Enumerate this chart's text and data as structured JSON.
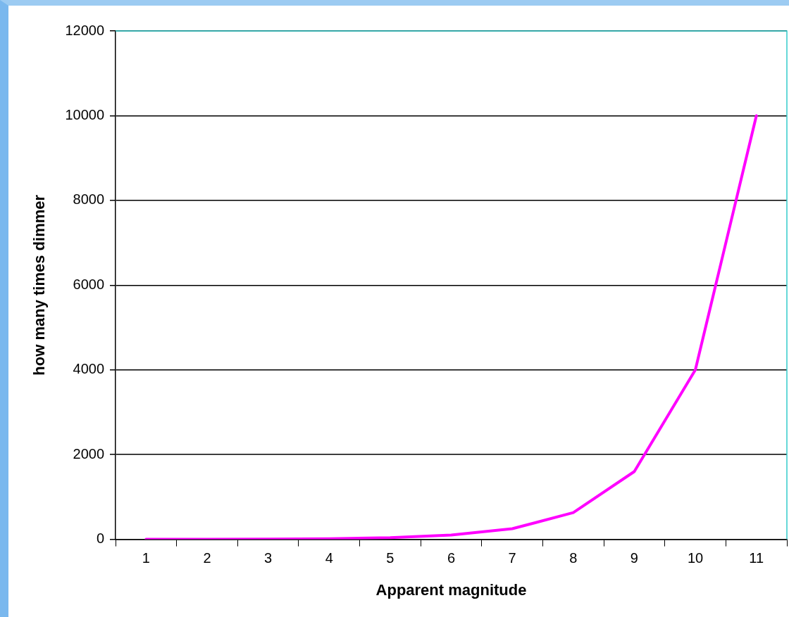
{
  "chart_data": {
    "type": "line",
    "xlabel": "Apparent magnitude",
    "ylabel": "how many times dimmer",
    "categories": [
      "1",
      "2",
      "3",
      "4",
      "5",
      "6",
      "7",
      "8",
      "9",
      "10",
      "11"
    ],
    "series": [
      {
        "color": "#ff00ff",
        "values": [
          1,
          3,
          6,
          16,
          40,
          100,
          250,
          630,
          1600,
          4000,
          10000
        ]
      }
    ],
    "ylim": [
      0,
      12000
    ],
    "yticks": [
      0,
      2000,
      4000,
      6000,
      8000,
      10000,
      12000
    ],
    "grid": "y",
    "legend": false,
    "marker": "none",
    "line_style": "solid"
  }
}
